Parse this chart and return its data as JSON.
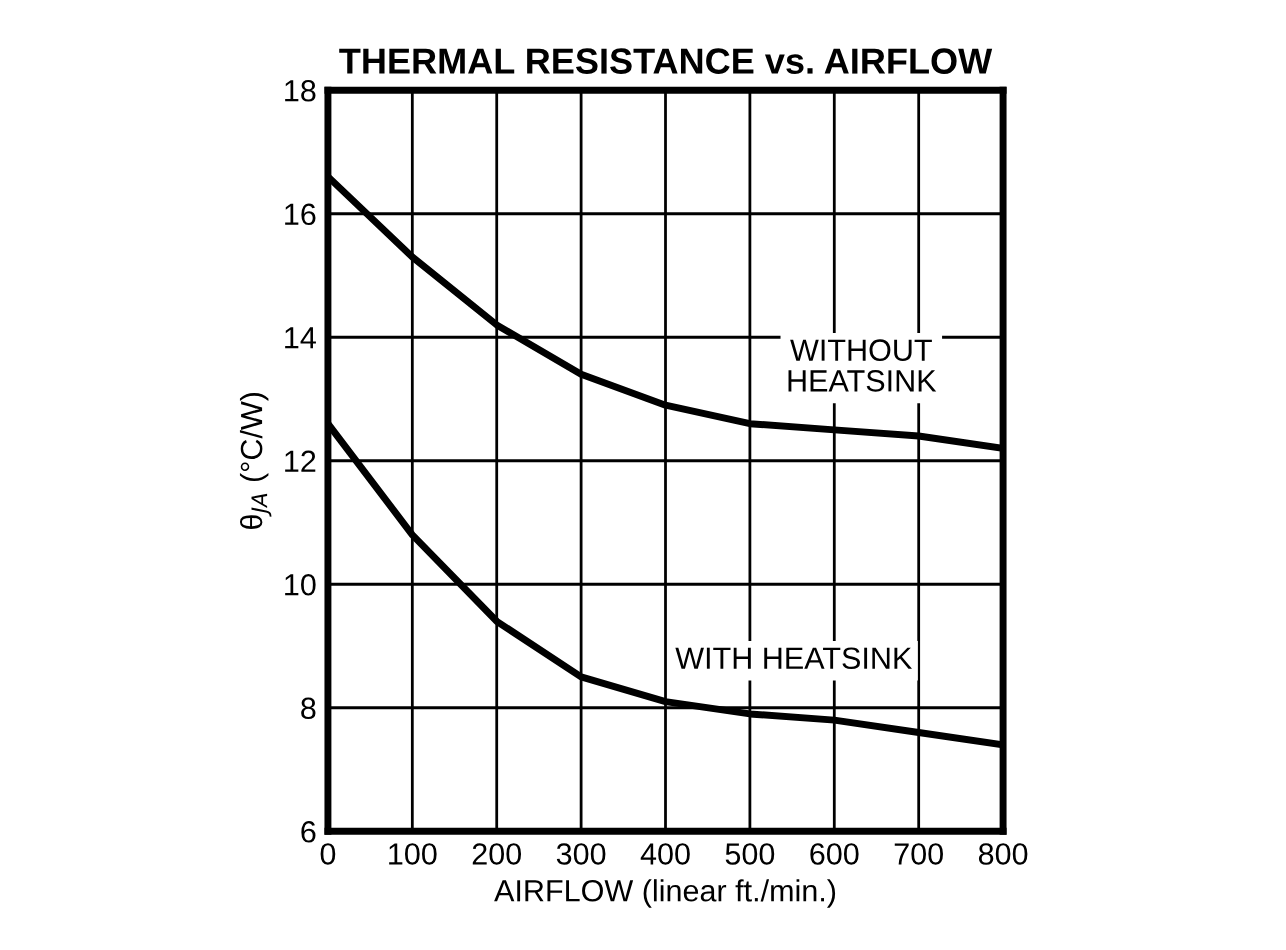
{
  "chart_data": {
    "type": "line",
    "title": "THERMAL RESISTANCE vs. AIRFLOW",
    "xlabel": "AIRFLOW (linear ft./min.)",
    "ylabel": "θ$_{JA}$ (°C/W)",
    "series": [
      {
        "name": "WITHOUT\nHEATSINK",
        "color": "#000000",
        "x": [
          0,
          100,
          200,
          300,
          400,
          500,
          600,
          700,
          800
        ],
        "values": [
          16.6,
          15.3,
          14.2,
          13.4,
          12.9,
          12.6,
          12.5,
          12.4,
          12.2
        ]
      },
      {
        "name": "WITH HEATSINK",
        "color": "#000000",
        "x": [
          0,
          100,
          200,
          300,
          400,
          500,
          600,
          700,
          800
        ],
        "values": [
          12.6,
          10.8,
          9.4,
          8.5,
          8.1,
          7.9,
          7.8,
          7.6,
          7.4
        ]
      }
    ],
    "xlim": [
      0,
      800
    ],
    "xticks": [
      0,
      100,
      200,
      300,
      400,
      500,
      600,
      700,
      800
    ],
    "ylim": [
      6,
      18
    ],
    "yticks": [
      6,
      8,
      10,
      12,
      14,
      16,
      18
    ],
    "grid": true,
    "marker": "none",
    "line_style": "solid"
  }
}
